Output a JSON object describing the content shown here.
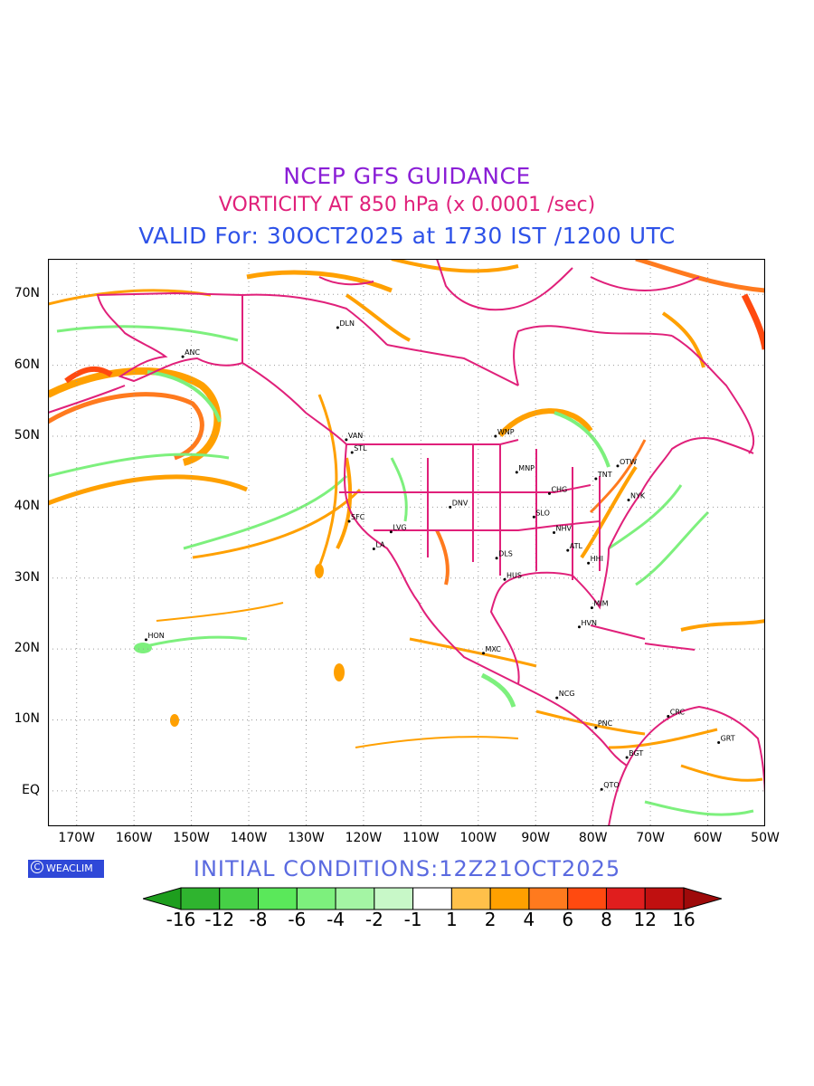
{
  "titles": {
    "line1": "NCEP GFS GUIDANCE",
    "line2": "VORTICITY AT 850 hPa (x 0.0001 /sec)",
    "line3": "VALID For: 30OCT2025 at 1730 IST /1200 UTC"
  },
  "map": {
    "lat_labels": [
      "70N",
      "60N",
      "50N",
      "40N",
      "30N",
      "20N",
      "10N",
      "EQ"
    ],
    "lon_labels": [
      "170W",
      "160W",
      "150W",
      "140W",
      "130W",
      "120W",
      "110W",
      "100W",
      "90W",
      "80W",
      "70W",
      "60W",
      "50W"
    ],
    "stations": [
      {
        "name": "ANC",
        "lon": -151.5,
        "lat": 61.2
      },
      {
        "name": "DLN",
        "lon": -124.5,
        "lat": 65.3
      },
      {
        "name": "WNP",
        "lon": -97,
        "lat": 50.0
      },
      {
        "name": "VAN",
        "lon": -123,
        "lat": 49.5
      },
      {
        "name": "STL",
        "lon": -122,
        "lat": 47.7
      },
      {
        "name": "OTW",
        "lon": -75.7,
        "lat": 45.8
      },
      {
        "name": "TNT",
        "lon": -79.5,
        "lat": 44.0
      },
      {
        "name": "MNP",
        "lon": -93.3,
        "lat": 44.9
      },
      {
        "name": "CHG",
        "lon": -87.6,
        "lat": 41.9
      },
      {
        "name": "NYK",
        "lon": -73.8,
        "lat": 41.0
      },
      {
        "name": "DNV",
        "lon": -104.9,
        "lat": 40.0
      },
      {
        "name": "SFC",
        "lon": -122.5,
        "lat": 38.0
      },
      {
        "name": "SLO",
        "lon": -90.3,
        "lat": 38.6
      },
      {
        "name": "LVG",
        "lon": -115.2,
        "lat": 36.5
      },
      {
        "name": "NHV",
        "lon": -86.8,
        "lat": 36.4
      },
      {
        "name": "LA",
        "lon": -118.2,
        "lat": 34.1
      },
      {
        "name": "ATL",
        "lon": -84.4,
        "lat": 33.9
      },
      {
        "name": "DLS",
        "lon": -96.8,
        "lat": 32.8
      },
      {
        "name": "HHI",
        "lon": -80.8,
        "lat": 32.1
      },
      {
        "name": "HUS",
        "lon": -95.4,
        "lat": 29.8
      },
      {
        "name": "MIM",
        "lon": -80.2,
        "lat": 25.8
      },
      {
        "name": "HVN",
        "lon": -82.4,
        "lat": 23.1
      },
      {
        "name": "HON",
        "lon": -157.9,
        "lat": 21.3
      },
      {
        "name": "MXC",
        "lon": -99.1,
        "lat": 19.4
      },
      {
        "name": "NCG",
        "lon": -86.3,
        "lat": 13.1
      },
      {
        "name": "CRC",
        "lon": -66.9,
        "lat": 10.5
      },
      {
        "name": "GRT",
        "lon": -58.1,
        "lat": 6.8
      },
      {
        "name": "PNC",
        "lon": -79.5,
        "lat": 8.9
      },
      {
        "name": "BGT",
        "lon": -74.1,
        "lat": 4.7
      },
      {
        "name": "QTO",
        "lon": -78.5,
        "lat": 0.2
      }
    ]
  },
  "footer": {
    "initial_conditions": "INITIAL CONDITIONS:12Z21OCT2025",
    "logo_text": "WEACLIM",
    "logo_symbol": "C"
  },
  "colorbar": {
    "labels": [
      "-16",
      "-12",
      "-8",
      "-6",
      "-4",
      "-2",
      "-1",
      "1",
      "2",
      "4",
      "6",
      "8",
      "12",
      "16"
    ],
    "colors": [
      "#1e9e1e",
      "#2fb42f",
      "#46d046",
      "#5ae85a",
      "#7df07d",
      "#a4f5a4",
      "#c8f8c8",
      "#ffffff",
      "#ffc04a",
      "#ffa000",
      "#ff7a1e",
      "#ff4a10",
      "#e01e1e",
      "#c01010",
      "#9e0a0a"
    ]
  }
}
